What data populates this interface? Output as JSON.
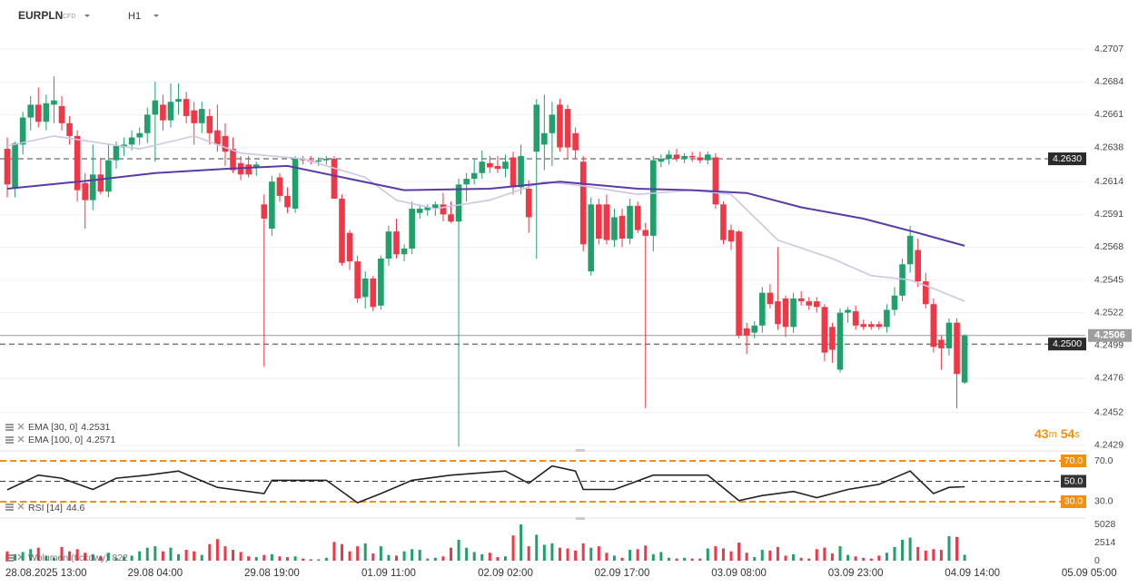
{
  "header": {
    "symbol": "EURPLN",
    "kind": "CFD",
    "interval": "H1"
  },
  "countdown": [
    "43",
    "m",
    "54",
    "s"
  ],
  "chart_data": [
    {
      "type": "candlestick",
      "up_color": "#22a06b",
      "down_color": "#f23645",
      "ylim": [
        4.2425,
        4.2716
      ],
      "yticks": [
        4.2707,
        4.2684,
        4.2661,
        4.2638,
        4.2614,
        4.2591,
        4.2568,
        4.2545,
        4.2522,
        4.2499,
        4.2476,
        4.2452,
        4.2429
      ],
      "grid": true,
      "xticks": [
        {
          "value": 4,
          "label": "28.08.2025 13:00"
        },
        {
          "value": 19,
          "label": "29.08 04:00"
        },
        {
          "value": 34,
          "label": "29.08 19:00"
        },
        {
          "value": 49,
          "label": "01.09 11:00"
        },
        {
          "value": 64,
          "label": "02.09 02:00"
        },
        {
          "value": 79,
          "label": "02.09 17:00"
        },
        {
          "value": 94,
          "label": "03.09 08:00"
        },
        {
          "value": 109,
          "label": "03.09 23:00"
        },
        {
          "value": 124,
          "label": "04.09 14:00"
        },
        {
          "value": 139,
          "label": "05.09 05:00"
        }
      ],
      "levels": [
        {
          "value": 4.263,
          "label": "4.2630"
        },
        {
          "value": 4.25,
          "label": "4.2500"
        }
      ],
      "price": 4.2506,
      "ohlc": [
        [
          4.2637,
          4.2645,
          4.2603,
          4.2612
        ],
        [
          4.2609,
          4.2642,
          4.2603,
          4.2641
        ],
        [
          4.264,
          4.2663,
          4.2633,
          4.2659
        ],
        [
          4.2659,
          4.2674,
          4.265,
          4.2668
        ],
        [
          4.2668,
          4.268,
          4.2652,
          4.2656
        ],
        [
          4.2656,
          4.2675,
          4.265,
          4.2669
        ],
        [
          4.2668,
          4.2688,
          4.2655,
          4.2671
        ],
        [
          4.2667,
          4.2674,
          4.265,
          4.2655
        ],
        [
          4.2655,
          4.266,
          4.264,
          4.2646
        ],
        [
          4.2646,
          4.265,
          4.26,
          4.2608
        ],
        [
          4.2613,
          4.262,
          4.2581,
          4.2601
        ],
        [
          4.2601,
          4.264,
          4.2594,
          4.2619
        ],
        [
          4.2619,
          4.263,
          4.2605,
          4.2607
        ],
        [
          4.2607,
          4.264,
          4.2603,
          4.2629
        ],
        [
          4.2629,
          4.2642,
          4.2623,
          4.2639
        ],
        [
          4.2638,
          4.2645,
          4.2632,
          4.264
        ],
        [
          4.264,
          4.265,
          4.2636,
          4.2645
        ],
        [
          4.2645,
          4.2652,
          4.264,
          4.2648
        ],
        [
          4.2648,
          4.2666,
          4.2641,
          4.2661
        ],
        [
          4.2661,
          4.2684,
          4.2628,
          4.2671
        ],
        [
          4.2668,
          4.2675,
          4.265,
          4.2657
        ],
        [
          4.2657,
          4.2683,
          4.2652,
          4.267
        ],
        [
          4.267,
          4.2683,
          4.2661,
          4.2672
        ],
        [
          4.2672,
          4.2677,
          4.2655,
          4.266
        ],
        [
          4.2664,
          4.267,
          4.264,
          4.2655
        ],
        [
          4.2655,
          4.267,
          4.2648,
          4.2665
        ],
        [
          4.266,
          4.2665,
          4.264,
          4.2648
        ],
        [
          4.265,
          4.2668,
          4.2635,
          4.264
        ],
        [
          4.2646,
          4.2655,
          4.2625,
          4.2635
        ],
        [
          4.2637,
          4.2645,
          4.262,
          4.2622
        ],
        [
          4.2627,
          4.2632,
          4.2615,
          4.2619
        ],
        [
          4.2626,
          4.2632,
          4.2617,
          4.2619
        ],
        [
          4.2624,
          4.2628,
          4.2618,
          4.2626
        ],
        [
          4.2598,
          4.2605,
          4.2484,
          4.2588
        ],
        [
          4.2581,
          4.2618,
          4.2576,
          4.2614
        ],
        [
          4.2617,
          4.262,
          4.26,
          4.2604
        ],
        [
          4.2604,
          4.261,
          4.2592,
          4.2596
        ],
        [
          4.2595,
          4.2632,
          4.2592,
          4.263
        ],
        [
          4.263,
          4.2632,
          4.2626,
          4.2629
        ],
        [
          4.2629,
          4.2632,
          4.2626,
          4.2628
        ],
        [
          4.2628,
          4.2631,
          4.2625,
          4.2629
        ],
        [
          4.2629,
          4.2632,
          4.2626,
          4.263
        ],
        [
          4.263,
          4.2632,
          4.2602,
          4.2602
        ],
        [
          4.2602,
          4.2605,
          4.2555,
          4.2557
        ],
        [
          4.2578,
          4.258,
          4.2552,
          4.2558
        ],
        [
          4.2558,
          4.2562,
          4.2529,
          4.2532
        ],
        [
          4.2533,
          4.2551,
          4.2525,
          4.2546
        ],
        [
          4.2546,
          4.2548,
          4.2523,
          4.2526
        ],
        [
          4.2527,
          4.2562,
          4.2524,
          4.256
        ],
        [
          4.256,
          4.2583,
          4.2555,
          4.2579
        ],
        [
          4.2579,
          4.2588,
          4.256,
          4.2563
        ],
        [
          4.2563,
          4.257,
          4.2558,
          4.2567
        ],
        [
          4.2567,
          4.26,
          4.2563,
          4.2595
        ],
        [
          4.2592,
          4.2598,
          4.2588,
          4.2595
        ],
        [
          4.2594,
          4.2598,
          4.259,
          4.2596
        ],
        [
          4.2595,
          4.26,
          4.259,
          4.2598
        ],
        [
          4.2598,
          4.2606,
          4.2586,
          4.2591
        ],
        [
          4.2591,
          4.26,
          4.2585,
          4.2586
        ],
        [
          4.2586,
          4.2616,
          4.2428,
          4.2612
        ],
        [
          4.2612,
          4.262,
          4.26,
          4.2616
        ],
        [
          4.2616,
          4.263,
          4.2612,
          4.262
        ],
        [
          4.262,
          4.2636,
          4.2616,
          4.2628
        ],
        [
          4.2627,
          4.2632,
          4.262,
          4.2624
        ],
        [
          4.2625,
          4.2632,
          4.262,
          4.2623
        ],
        [
          4.2623,
          4.2633,
          4.2617,
          4.2628
        ],
        [
          4.2631,
          4.2635,
          4.2605,
          4.261
        ],
        [
          4.261,
          4.264,
          4.2605,
          4.2632
        ],
        [
          4.2609,
          4.2615,
          4.2578,
          4.2589
        ],
        [
          4.2635,
          4.2672,
          4.256,
          4.2668
        ],
        [
          4.264,
          4.2675,
          4.2622,
          4.2648
        ],
        [
          4.2648,
          4.267,
          4.2625,
          4.2661
        ],
        [
          4.2668,
          4.2672,
          4.2635,
          4.2638
        ],
        [
          4.2665,
          4.2668,
          4.263,
          4.2638
        ],
        [
          4.2648,
          4.2652,
          4.263,
          4.2636
        ],
        [
          4.2628,
          4.2632,
          4.2565,
          4.257
        ],
        [
          4.2551,
          4.2603,
          4.2548,
          4.2598
        ],
        [
          4.2598,
          4.2602,
          4.257,
          4.2574
        ],
        [
          4.2598,
          4.2605,
          4.257,
          4.2573
        ],
        [
          4.2573,
          4.2595,
          4.2568,
          4.2589
        ],
        [
          4.259,
          4.2595,
          4.2568,
          4.2574
        ],
        [
          4.2574,
          4.2602,
          4.257,
          4.2597
        ],
        [
          4.2597,
          4.26,
          4.2578,
          4.258
        ],
        [
          4.258,
          4.2585,
          4.2455,
          4.2576
        ],
        [
          4.2576,
          4.2632,
          4.2565,
          4.2629
        ],
        [
          4.2628,
          4.2633,
          4.2624,
          4.263
        ],
        [
          4.263,
          4.2636,
          4.2626,
          4.2633
        ],
        [
          4.2633,
          4.2637,
          4.2628,
          4.263
        ],
        [
          4.263,
          4.2634,
          4.2627,
          4.2632
        ],
        [
          4.2632,
          4.2635,
          4.2628,
          4.2631
        ],
        [
          4.2631,
          4.2635,
          4.2627,
          4.2629
        ],
        [
          4.2629,
          4.2635,
          4.2626,
          4.2633
        ],
        [
          4.2631,
          4.2634,
          4.2595,
          4.2598
        ],
        [
          4.2598,
          4.26,
          4.257,
          4.2573
        ],
        [
          4.258,
          4.2584,
          4.2566,
          4.2572
        ],
        [
          4.2579,
          4.258,
          4.2504,
          4.2506
        ],
        [
          4.2511,
          4.2515,
          4.2493,
          4.2506
        ],
        [
          4.2508,
          4.2516,
          4.2504,
          4.2513
        ],
        [
          4.2513,
          4.254,
          4.2508,
          4.2536
        ],
        [
          4.2536,
          4.2542,
          4.2525,
          4.2528
        ],
        [
          4.253,
          4.2568,
          4.251,
          4.2514
        ],
        [
          4.2532,
          4.2534,
          4.2505,
          4.2512
        ],
        [
          4.2512,
          4.2536,
          4.2508,
          4.2532
        ],
        [
          4.2532,
          4.2537,
          4.2527,
          4.253
        ],
        [
          4.253,
          4.2533,
          4.2524,
          4.2527
        ],
        [
          4.253,
          4.2533,
          4.2522,
          4.2526
        ],
        [
          4.2526,
          4.2528,
          4.2488,
          4.2494
        ],
        [
          4.2512,
          4.2515,
          4.2487,
          4.2496
        ],
        [
          4.2482,
          4.2525,
          4.248,
          4.2522
        ],
        [
          4.2522,
          4.2526,
          4.2515,
          4.2524
        ],
        [
          4.2523,
          4.2527,
          4.251,
          4.2513
        ],
        [
          4.2514,
          4.2517,
          4.251,
          4.2512
        ],
        [
          4.2514,
          4.2516,
          4.251,
          4.2512
        ],
        [
          4.2514,
          4.2516,
          4.251,
          4.2512
        ],
        [
          4.2512,
          4.2528,
          4.2508,
          4.2524
        ],
        [
          4.2524,
          4.254,
          4.252,
          4.2534
        ],
        [
          4.2534,
          4.256,
          4.253,
          4.2556
        ],
        [
          4.2556,
          4.2583,
          4.255,
          4.2576
        ],
        [
          4.2566,
          4.2574,
          4.254,
          4.2544
        ],
        [
          4.2544,
          4.255,
          4.2525,
          4.2528
        ],
        [
          4.2528,
          4.2532,
          4.2494,
          4.2498
        ],
        [
          4.2503,
          4.2506,
          4.2482,
          4.2497
        ],
        [
          4.2497,
          4.2518,
          4.2492,
          4.2515
        ],
        [
          4.2515,
          4.2518,
          4.2455,
          4.2479
        ],
        [
          4.2473,
          4.2507,
          4.2472,
          4.2506
        ]
      ],
      "lines": [
        {
          "name": "EMA [30, 0]",
          "last": 4.2531,
          "color": "#cdc5e4",
          "index": [
            0,
            6,
            17,
            24,
            30,
            38,
            46,
            50,
            55,
            62,
            69,
            74,
            81,
            88,
            93,
            96,
            99,
            106,
            111,
            116,
            119,
            123
          ],
          "values": [
            4.2639,
            4.2646,
            4.2637,
            4.2646,
            4.2634,
            4.263,
            4.2617,
            4.2601,
            4.2595,
            4.2601,
            4.2614,
            4.2611,
            4.2605,
            4.2608,
            4.2605,
            4.2589,
            4.2573,
            4.256,
            4.2548,
            4.2545,
            4.2539,
            4.253
          ]
        },
        {
          "name": "EMA [100, 0]",
          "last": 4.2571,
          "color": "#5a3aa6",
          "index": [
            0,
            11,
            19,
            28,
            36,
            51,
            62,
            71,
            81,
            88,
            95,
            102,
            110,
            117,
            123
          ],
          "values": [
            4.2609,
            4.2615,
            4.262,
            4.2623,
            4.2625,
            4.2608,
            4.2609,
            4.2614,
            4.2609,
            4.2608,
            4.2606,
            4.2596,
            4.2588,
            4.2578,
            4.2569
          ]
        }
      ]
    },
    {
      "type": "line",
      "name": "RSI [14]",
      "last": 44.6,
      "color": "#222222",
      "ylim": [
        19.3,
        77.1
      ],
      "yticks": [
        {
          "value": 70,
          "label": "70.0"
        },
        {
          "value": 30,
          "label": "30.0"
        }
      ],
      "levels": [
        {
          "value": 70,
          "label": "70.0",
          "color": "#f5900f"
        },
        {
          "value": 50,
          "label": "50.0",
          "color": "#333333"
        },
        {
          "value": 30,
          "label": "30.0",
          "color": "#f5900f"
        }
      ],
      "index": [
        0,
        4,
        7,
        11,
        14,
        18,
        22,
        27,
        33,
        34,
        38,
        41,
        45,
        48,
        52,
        57,
        64,
        67,
        70,
        73,
        74,
        78,
        83,
        90,
        94,
        97,
        101,
        104,
        108,
        112,
        116,
        119,
        121,
        123
      ],
      "values": [
        41.6,
        56,
        53,
        42,
        53,
        56,
        60,
        44,
        38,
        51,
        51,
        51,
        29,
        38,
        51,
        56,
        60,
        48,
        65,
        60,
        42,
        42,
        56,
        56,
        31,
        36,
        40,
        34,
        42,
        47,
        60,
        38,
        44,
        44.6
      ]
    },
    {
      "type": "bar",
      "name": "Wolumen (tickowy)",
      "last": 822,
      "ylim": [
        0,
        5028
      ],
      "yticks": [
        5028,
        2514,
        0
      ],
      "values": [
        1300,
        900,
        1200,
        1600,
        1800,
        700,
        400,
        1900,
        1300,
        1600,
        1100,
        900,
        600,
        1100,
        400,
        600,
        700,
        1300,
        1800,
        2000,
        1300,
        1800,
        900,
        1500,
        1300,
        800,
        2300,
        3000,
        2000,
        1500,
        1200,
        600,
        500,
        800,
        900,
        600,
        500,
        600,
        300,
        200,
        200,
        400,
        2600,
        2300,
        1300,
        2000,
        2400,
        1000,
        2000,
        800,
        700,
        1300,
        1600,
        1500,
        300,
        400,
        600,
        1800,
        2900,
        1800,
        1200,
        900,
        1100,
        500,
        600,
        3500,
        5028,
        2000,
        3600,
        2200,
        2400,
        1800,
        1700,
        1400,
        2400,
        1800,
        2000,
        1100,
        700,
        400,
        1500,
        1600,
        2100,
        900,
        1200,
        400,
        300,
        400,
        300,
        300,
        1700,
        2000,
        1700,
        1300,
        2500,
        1100,
        500,
        1500,
        1400,
        1900,
        700,
        900,
        400,
        300,
        1600,
        1800,
        1000,
        2000,
        800,
        600,
        400,
        300,
        700,
        1100,
        1900,
        2900,
        3200,
        1900,
        1400,
        1600,
        1500,
        3400,
        3300,
        822
      ]
    }
  ]
}
